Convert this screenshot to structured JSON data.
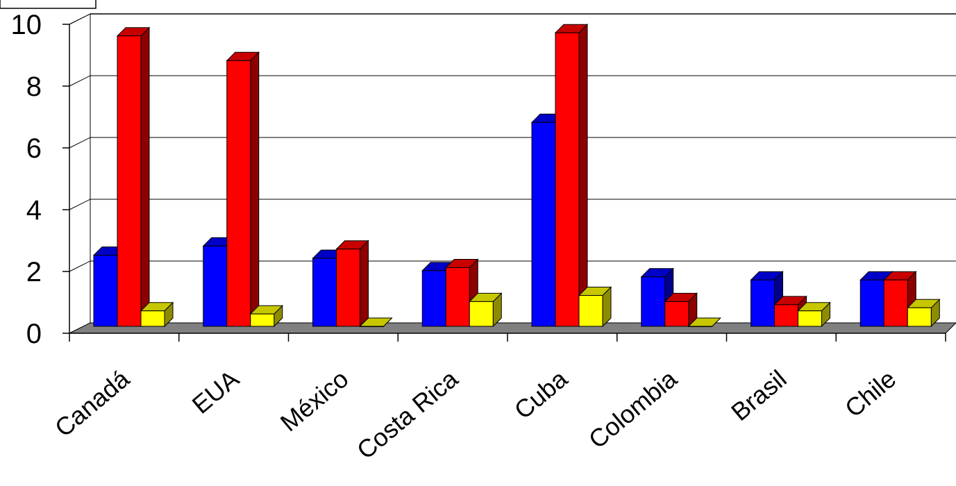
{
  "chart_data": {
    "type": "bar",
    "categories": [
      "Canadá",
      "EUA",
      "México",
      "Costa Rica",
      "Cuba",
      "Colombia",
      "Brasil",
      "Chile"
    ],
    "series": [
      {
        "color": "#0000ff",
        "values": [
          2.3,
          2.6,
          2.2,
          1.8,
          6.6,
          1.6,
          1.5,
          1.5
        ]
      },
      {
        "color": "#ff0000",
        "values": [
          9.4,
          8.6,
          2.5,
          1.9,
          9.5,
          0.8,
          0.7,
          1.5
        ]
      },
      {
        "color": "#ffff00",
        "values": [
          0.5,
          0.4,
          0.0,
          0.8,
          1.0,
          0.0,
          0.5,
          0.6
        ]
      }
    ],
    "yticks": [
      0,
      2,
      4,
      6,
      8,
      10
    ],
    "ylim": [
      0,
      10
    ],
    "grid": true,
    "view": "3d-column",
    "floor_color": "#808080",
    "xlabel": "",
    "ylabel": "",
    "title": ""
  }
}
